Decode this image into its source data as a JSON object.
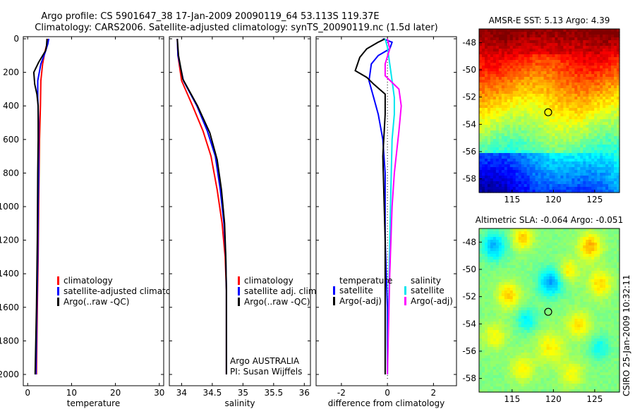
{
  "title": {
    "line1": "Argo profile: CS 5901647_38 17-Jan-2009 20090119_64 53.113S 119.37E",
    "line2": "Climatology: CARS2006. Satellite-adjusted climatology: synTS_20090119.nc (1.5d later)"
  },
  "footer": "CSIRO 25-Jan-2009 10:32:11",
  "colors": {
    "climatology": "#ff0000",
    "satellite": "#0000ff",
    "argo": "#000000",
    "salinity_satellite": "#00e5ee",
    "salinity_argo": "#ff00ff",
    "axis": "#000000"
  },
  "chart_data": [
    {
      "type": "line",
      "xlabel": "temperature",
      "ylabel": "",
      "xlim": [
        -1,
        31
      ],
      "ylim": [
        2050,
        0
      ],
      "xticks": [
        "0",
        "10",
        "20",
        "30"
      ],
      "xtick_values": [
        0,
        10,
        20,
        30
      ],
      "yticks": [
        "0",
        "200",
        "400",
        "600",
        "800",
        "1000",
        "1200",
        "1400",
        "1600",
        "1800",
        "2000"
      ],
      "ytick_values": [
        0,
        200,
        400,
        600,
        800,
        1000,
        1200,
        1400,
        1600,
        1800,
        2000
      ],
      "legend": [
        "climatology",
        "satellite-adjusted climatolog",
        "Argo(..raw -QC)"
      ],
      "legend_placement": "lower-right",
      "series": [
        {
          "name": "climatology",
          "color": "#ff0000",
          "points": [
            [
              4.6,
              0
            ],
            [
              4.4,
              30
            ],
            [
              3.9,
              80
            ],
            [
              3.4,
              150
            ],
            [
              3.0,
              250
            ],
            [
              2.9,
              400
            ],
            [
              2.7,
              600
            ],
            [
              2.6,
              800
            ],
            [
              2.5,
              1000
            ],
            [
              2.4,
              1300
            ],
            [
              2.2,
              1600
            ],
            [
              2.0,
              2000
            ]
          ]
        },
        {
          "name": "satellite-adjusted climatolog",
          "color": "#0000ff",
          "points": [
            [
              4.8,
              0
            ],
            [
              4.6,
              30
            ],
            [
              4.0,
              80
            ],
            [
              3.0,
              150
            ],
            [
              2.3,
              250
            ],
            [
              2.3,
              350
            ],
            [
              2.5,
              500
            ],
            [
              2.5,
              800
            ],
            [
              2.4,
              1000
            ],
            [
              2.3,
              1300
            ],
            [
              2.1,
              1600
            ],
            [
              1.9,
              2000
            ]
          ]
        },
        {
          "name": "Argo(..raw -QC)",
          "color": "#000000",
          "points": [
            [
              4.4,
              0
            ],
            [
              4.3,
              40
            ],
            [
              4.1,
              70
            ],
            [
              2.5,
              140
            ],
            [
              1.4,
              200
            ],
            [
              1.6,
              270
            ],
            [
              2.1,
              330
            ],
            [
              2.4,
              400
            ],
            [
              2.4,
              600
            ],
            [
              2.3,
              800
            ],
            [
              2.2,
              1200
            ],
            [
              2.0,
              1600
            ],
            [
              1.7,
              2000
            ]
          ]
        }
      ]
    },
    {
      "type": "line",
      "xlabel": "salinity",
      "xlim": [
        33.8,
        36.1
      ],
      "ylim": [
        2050,
        0
      ],
      "xticks": [
        "34",
        "34.5",
        "35",
        "35.5",
        "36"
      ],
      "xtick_values": [
        34,
        34.5,
        35,
        35.5,
        36
      ],
      "legend": [
        "climatology",
        "satellite adj. clim.",
        "Argo(..raw -QC)"
      ],
      "legend_placement": "lower-right",
      "annotation": [
        "Argo AUSTRALIA",
        "PI: Susan Wijffels"
      ],
      "series": [
        {
          "name": "climatology",
          "color": "#ff0000",
          "points": [
            [
              33.93,
              0
            ],
            [
              33.94,
              100
            ],
            [
              34.0,
              250
            ],
            [
              34.18,
              400
            ],
            [
              34.35,
              550
            ],
            [
              34.48,
              700
            ],
            [
              34.58,
              900
            ],
            [
              34.66,
              1100
            ],
            [
              34.71,
              1300
            ],
            [
              34.73,
              1500
            ],
            [
              34.73,
              2000
            ]
          ]
        },
        {
          "name": "satellite adj. clim.",
          "color": "#0000ff",
          "points": [
            [
              33.93,
              0
            ],
            [
              33.94,
              100
            ],
            [
              34.03,
              250
            ],
            [
              34.25,
              400
            ],
            [
              34.42,
              550
            ],
            [
              34.55,
              700
            ],
            [
              34.63,
              900
            ],
            [
              34.69,
              1100
            ],
            [
              34.72,
              1300
            ],
            [
              34.73,
              1500
            ],
            [
              34.73,
              2000
            ]
          ]
        },
        {
          "name": "Argo(..raw -QC)",
          "color": "#000000",
          "points": [
            [
              33.93,
              0
            ],
            [
              33.95,
              100
            ],
            [
              34.02,
              240
            ],
            [
              34.26,
              400
            ],
            [
              34.46,
              560
            ],
            [
              34.58,
              720
            ],
            [
              34.65,
              900
            ],
            [
              34.7,
              1100
            ],
            [
              34.72,
              1300
            ],
            [
              34.73,
              1500
            ],
            [
              34.73,
              2000
            ]
          ]
        }
      ]
    },
    {
      "type": "line",
      "xlabel": "difference from climatology",
      "xlim": [
        -3.1,
        3.0
      ],
      "ylim": [
        2050,
        0
      ],
      "xticks": [
        "-2",
        "0",
        "2"
      ],
      "xtick_values": [
        -2,
        0,
        2
      ],
      "legend_left": {
        "title": "temperature",
        "items": [
          "satellite",
          "Argo(-adj)"
        ]
      },
      "legend_right": {
        "title": "salinity",
        "items": [
          "satellite",
          "Argo(-adj)"
        ]
      },
      "legend_placement": "lower-center",
      "series": [
        {
          "name": "temperature satellite",
          "color": "#0000ff",
          "points": [
            [
              -0.2,
              0
            ],
            [
              0.2,
              20
            ],
            [
              0.1,
              60
            ],
            [
              -0.4,
              100
            ],
            [
              -0.7,
              150
            ],
            [
              -0.8,
              250
            ],
            [
              -0.6,
              350
            ],
            [
              -0.4,
              450
            ],
            [
              -0.2,
              600
            ],
            [
              -0.1,
              800
            ],
            [
              -0.1,
              1200
            ],
            [
              0.0,
              1600
            ],
            [
              0.0,
              2000
            ]
          ]
        },
        {
          "name": "temperature Argo(-adj)",
          "color": "#000000",
          "points": [
            [
              -0.1,
              0
            ],
            [
              -0.4,
              20
            ],
            [
              -0.9,
              60
            ],
            [
              -1.2,
              110
            ],
            [
              -1.4,
              190
            ],
            [
              -0.9,
              230
            ],
            [
              -0.6,
              270
            ],
            [
              -0.1,
              330
            ],
            [
              -0.1,
              450
            ],
            [
              -0.2,
              700
            ],
            [
              -0.1,
              1200
            ],
            [
              -0.1,
              1600
            ],
            [
              -0.1,
              2000
            ]
          ]
        },
        {
          "name": "salinity satellite",
          "color": "#00e5ee",
          "points": [
            [
              -0.1,
              0
            ],
            [
              0.0,
              50
            ],
            [
              0.1,
              150
            ],
            [
              0.2,
              250
            ],
            [
              0.3,
              350
            ],
            [
              0.3,
              450
            ],
            [
              0.2,
              600
            ],
            [
              0.15,
              900
            ],
            [
              0.1,
              1200
            ],
            [
              0.05,
              1600
            ],
            [
              0.0,
              2000
            ]
          ]
        },
        {
          "name": "salinity Argo(-adj)",
          "color": "#ff00ff",
          "points": [
            [
              0.0,
              0
            ],
            [
              0.1,
              60
            ],
            [
              -0.1,
              150
            ],
            [
              -0.1,
              220
            ],
            [
              0.5,
              300
            ],
            [
              0.6,
              400
            ],
            [
              0.5,
              550
            ],
            [
              0.3,
              800
            ],
            [
              0.2,
              1000
            ],
            [
              0.1,
              1400
            ],
            [
              0.0,
              2000
            ]
          ]
        }
      ]
    },
    {
      "type": "heatmap",
      "title": "AMSR-E SST: 5.13  Argo: 4.39",
      "xlim": [
        111,
        128
      ],
      "ylim": [
        -59,
        -47
      ],
      "xticks": [
        "115",
        "120",
        "125"
      ],
      "xtick_values": [
        115,
        120,
        125
      ],
      "yticks": [
        "-48",
        "-50",
        "-52",
        "-54",
        "-56",
        "-58"
      ],
      "ytick_values": [
        -48,
        -50,
        -52,
        -54,
        -56,
        -58
      ],
      "marker": {
        "x": 119.37,
        "y": -53.113
      },
      "colormap": "jet"
    },
    {
      "type": "heatmap",
      "title": "Altimetric SLA: -0.064  Argo: -0.051",
      "xlim": [
        111,
        128
      ],
      "ylim": [
        -59,
        -47
      ],
      "xticks": [
        "115",
        "120",
        "125"
      ],
      "xtick_values": [
        115,
        120,
        125
      ],
      "yticks": [
        "-48",
        "-50",
        "-52",
        "-54",
        "-56",
        "-58"
      ],
      "ytick_values": [
        -48,
        -50,
        -52,
        -54,
        -56,
        -58
      ],
      "marker": {
        "x": 119.37,
        "y": -53.113
      },
      "colormap": "jet"
    }
  ]
}
